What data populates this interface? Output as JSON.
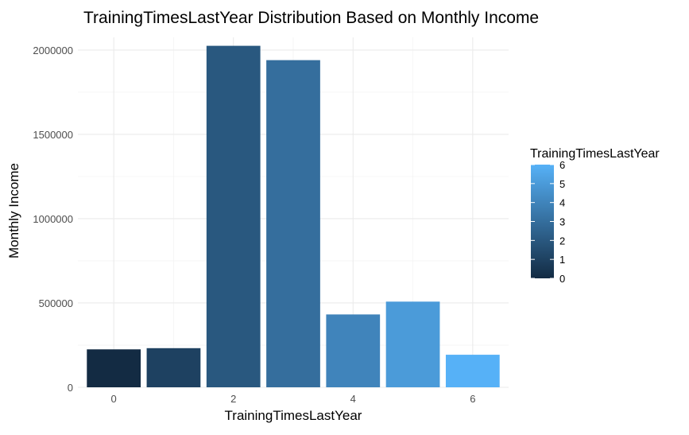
{
  "chart_data": {
    "type": "bar",
    "title": "TrainingTimesLastYear Distribution Based on Monthly Income",
    "xlabel": "TrainingTimesLastYear",
    "ylabel": "Monthly Income",
    "x": [
      0,
      1,
      2,
      3,
      4,
      5,
      6
    ],
    "values": [
      225000,
      232000,
      2025000,
      1940000,
      432000,
      508000,
      193000
    ],
    "x_ticks": [
      "0",
      "2",
      "4",
      "6"
    ],
    "x_tick_values": [
      0,
      2,
      4,
      6
    ],
    "y_ticks": [
      "0",
      "500000",
      "1000000",
      "1500000",
      "2000000"
    ],
    "y_tick_values": [
      0,
      500000,
      1000000,
      1500000,
      2000000
    ],
    "ylim": [
      0,
      2075000
    ],
    "xlim": [
      -0.6,
      6.6
    ],
    "grid": true,
    "legend": {
      "title": "TrainingTimesLastYear",
      "placement": "right",
      "labels": [
        "6",
        "5",
        "4",
        "3",
        "2",
        "1",
        "0"
      ],
      "values": [
        6,
        5,
        4,
        3,
        2,
        1,
        0
      ],
      "color_low": "#132b43",
      "color_high": "#56b1f7"
    }
  }
}
